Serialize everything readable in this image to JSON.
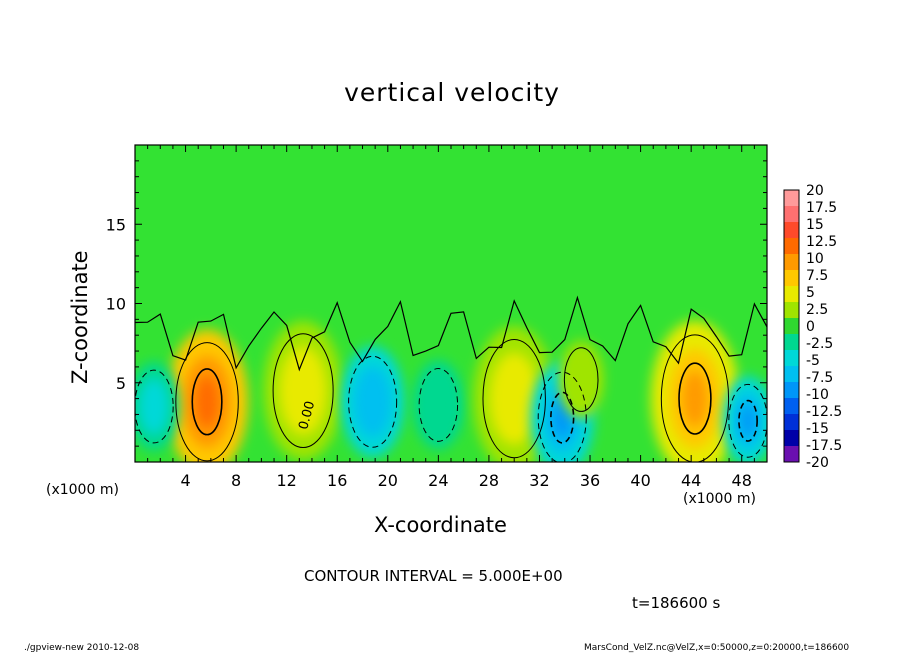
{
  "footer": {
    "left": "./gpview-new  2010-12-08",
    "right": "MarsCond_VelZ.nc@VelZ,x=0:50000,z=0:20000,t=186600"
  },
  "annotations": {
    "contour_interval": "CONTOUR INTERVAL = 5.000E+00",
    "time": "t=186600 s",
    "x_unit_left": "(x1000 m)",
    "x_unit_right": "(x1000 m)",
    "contour_label": "0.00"
  },
  "colors": {
    "background_field": "#33e233",
    "positive_core": "#e55a00",
    "negative_core": "#1a7cf0"
  },
  "chart_data": {
    "type": "heatmap",
    "title": "vertical velocity",
    "xlabel": "X-coordinate",
    "ylabel": "Z-coordinate",
    "xlim": [
      0,
      50
    ],
    "ylim": [
      0,
      20
    ],
    "x_ticks": [
      4,
      8,
      12,
      16,
      20,
      24,
      28,
      32,
      36,
      40,
      44,
      48
    ],
    "y_ticks": [
      5,
      10,
      15
    ],
    "contour_interval": 5,
    "colorbar": {
      "labels": [
        "20",
        "17.5",
        "15",
        "12.5",
        "10",
        "7.5",
        "5",
        "2.5",
        "0",
        "-2.5",
        "-5",
        "-7.5",
        "-10",
        "-12.5",
        "-15",
        "-17.5",
        "-20"
      ],
      "colors": [
        "#ff9a9a",
        "#ff7070",
        "#ff4a2a",
        "#ff6a00",
        "#ff9a00",
        "#ffc800",
        "#e8ea00",
        "#a0e400",
        "#30d830",
        "#00d890",
        "#00d8d8",
        "#00c0f0",
        "#0096f8",
        "#0060f0",
        "#0030d8",
        "#0000a8",
        "#6a10b0"
      ]
    },
    "cells": [
      {
        "x": 5.7,
        "z": 3.8,
        "w": 2.6,
        "v": 12.5
      },
      {
        "x": 13.3,
        "z": 4.5,
        "w": 2.5,
        "v": 6
      },
      {
        "x": 18.8,
        "z": 3.8,
        "w": 2.0,
        "v": -8
      },
      {
        "x": 24.0,
        "z": 3.6,
        "w": 1.6,
        "v": -4
      },
      {
        "x": 30.0,
        "z": 4.0,
        "w": 2.6,
        "v": 6
      },
      {
        "x": 33.8,
        "z": 2.8,
        "w": 2.0,
        "v": -9
      },
      {
        "x": 35.3,
        "z": 5.2,
        "w": 1.4,
        "v": 3
      },
      {
        "x": 44.3,
        "z": 4.0,
        "w": 2.8,
        "v": 9
      },
      {
        "x": 48.5,
        "z": 2.6,
        "w": 1.6,
        "v": -10
      },
      {
        "x": 1.5,
        "z": 3.5,
        "w": 1.6,
        "v": -5
      }
    ]
  }
}
